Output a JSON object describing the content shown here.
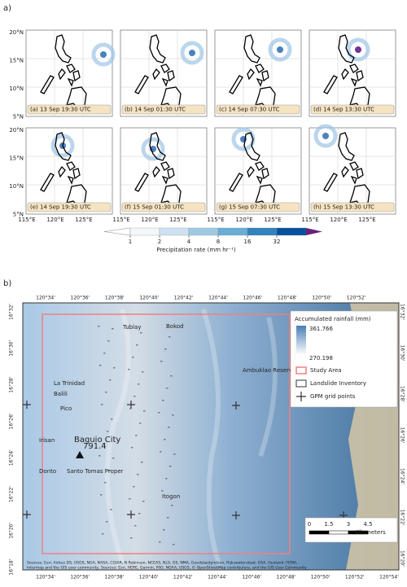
{
  "panel_a": {
    "label": "a)",
    "lat_ticks": [
      "20°N",
      "15°N",
      "10°N",
      "5°N"
    ],
    "lon_ticks": [
      "115°E",
      "120°E",
      "125°E"
    ],
    "panels": [
      "(a) 13 Sep 19:30 UTC",
      "(b) 14 Sep 01:30 UTC",
      "(c) 14 Sep 07:30 UTC",
      "(d) 14 Sep 13:30 UTC",
      "(e) 14 Sep 19:30 UTC",
      "(f) 15 Sep 01:30 UTC",
      "(g) 15 Sep 07:30 UTC",
      "(h) 15 Sep 13:30 UTC"
    ],
    "colorbar": {
      "ticks": [
        1,
        2,
        4,
        8,
        16,
        32
      ],
      "label": "Precipitation rate (mm hr⁻¹)"
    }
  },
  "panel_b": {
    "label": "b)",
    "top_ticks": [
      "120°34'",
      "120°36'",
      "120°38'",
      "120°40'",
      "120°42'",
      "120°44'",
      "120°46'",
      "120°48'",
      "120°50'",
      "120°52'"
    ],
    "bottom_ticks": [
      "120°34'",
      "120°36'",
      "120°38'",
      "120°40'",
      "120°42'",
      "120°44'",
      "120°46'",
      "120°48'",
      "120°50'",
      "120°52'",
      "120°54'"
    ],
    "left_ticks": [
      "16°32'",
      "16°30'",
      "16°28'",
      "16°26'",
      "16°24'",
      "16°22'",
      "16°20'",
      "16°18'"
    ],
    "right_ticks": [
      "16°32'",
      "16°30'",
      "16°28'",
      "16°26'",
      "16°24'",
      "16°22'",
      "16°20'"
    ],
    "legend": {
      "title": "Accumulated rainfall (mm)",
      "max": "361.766",
      "min": "270.198",
      "entries": [
        "Study Area",
        "Landslide Inventory",
        "GPM grid points"
      ]
    },
    "places": [
      "Tublay",
      "Bokod",
      "La Trinidad",
      "Balili",
      "Pico",
      "Irisan",
      "Baguio City",
      "Donto",
      "Santo Tomas Proper",
      "Itogon",
      "Ambuklao Reservoir"
    ],
    "marker_label": "791.4",
    "scale": {
      "ticks": [
        "0",
        "1.5",
        "3",
        "4.5"
      ],
      "unit": "Kilometers"
    },
    "attribution": [
      "Sources: Esri, Airbus DS, USGS, NGA, NASA, CGIAR, N Robinson, NCEAS, NLS, OS, NMA, Geodatastyrelsen, Rijkswaterstaat, GSA, Geoland, FEMA,",
      "Intermap and the GIS user community, Sources: Esri, HERE, Garmin, FAO, NOAA, USGS, © OpenStreetMap contributors, and the GIS User Community"
    ]
  }
}
